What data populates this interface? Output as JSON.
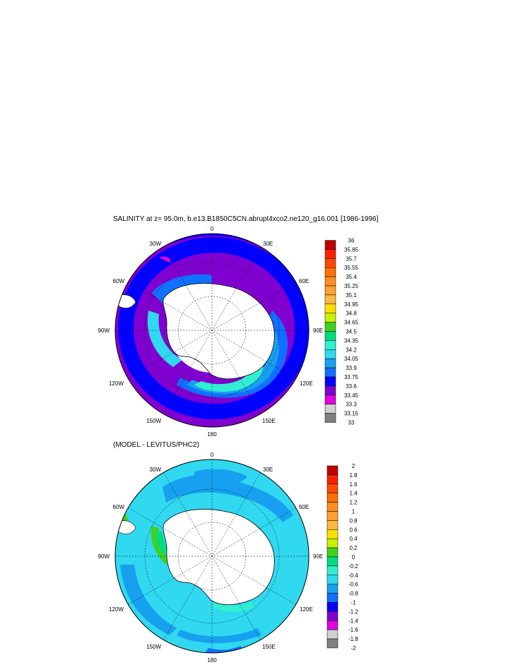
{
  "top_panel": {
    "title": "SALINITY at z=  95.0m, b.e13.B1850C5CN.abrupt4xco2.ne120_g16.001 [1986-1996]",
    "lon_labels": {
      "n": "0",
      "nne": "30E",
      "ene": "60E",
      "e": "90E",
      "ese": "120E",
      "sse": "150E",
      "s": "180",
      "ssw": "150W",
      "wsw": "120W",
      "w": "90W",
      "wnw": "60W",
      "nnw": "30W"
    },
    "colorbar_labels": [
      "36",
      "35.85",
      "35.7",
      "35.55",
      "35.4",
      "35.25",
      "35.1",
      "34.95",
      "34.8",
      "34.65",
      "34.5",
      "34.35",
      "34.2",
      "34.05",
      "33.9",
      "33.75",
      "33.6",
      "33.45",
      "33.3",
      "33.15",
      "33"
    ],
    "colorbar_colors": [
      "#c00000",
      "#ff2000",
      "#ff4a00",
      "#ff7000",
      "#ff9020",
      "#ffa030",
      "#ffb840",
      "#ffe000",
      "#c8f000",
      "#40d020",
      "#00dc80",
      "#30f0d0",
      "#30d8f0",
      "#18a0f0",
      "#1070ff",
      "#0000ff",
      "#8000d0",
      "#e000e0",
      "#d0d0d0",
      "#808080"
    ]
  },
  "bottom_panel": {
    "title": "(MODEL - LEVITUS/PHC2)",
    "lon_labels": {
      "n": "0",
      "nne": "30E",
      "ene": "60E",
      "e": "90E",
      "ese": "120E",
      "sse": "150E",
      "s": "180",
      "ssw": "150W",
      "wsw": "120W",
      "w": "90W",
      "wnw": "60W",
      "nnw": "30W"
    },
    "colorbar_labels": [
      "2",
      "1.8",
      "1.6",
      "1.4",
      "1.2",
      "1",
      "0.8",
      "0.6",
      "0.4",
      "0.2",
      "0",
      "-0.2",
      "-0.4",
      "-0.6",
      "-0.8",
      "-1",
      "-1.2",
      "-1.4",
      "-1.6",
      "-1.8",
      "-2"
    ],
    "colorbar_colors": [
      "#c00000",
      "#ff2000",
      "#ff4a00",
      "#ff7000",
      "#ff9020",
      "#ffa030",
      "#ffb840",
      "#ffe000",
      "#c8f000",
      "#40d020",
      "#00dc80",
      "#30f0d0",
      "#30d8f0",
      "#18a0f0",
      "#1070ff",
      "#0000ff",
      "#8000d0",
      "#e000e0",
      "#d0d0d0",
      "#808080"
    ]
  }
}
